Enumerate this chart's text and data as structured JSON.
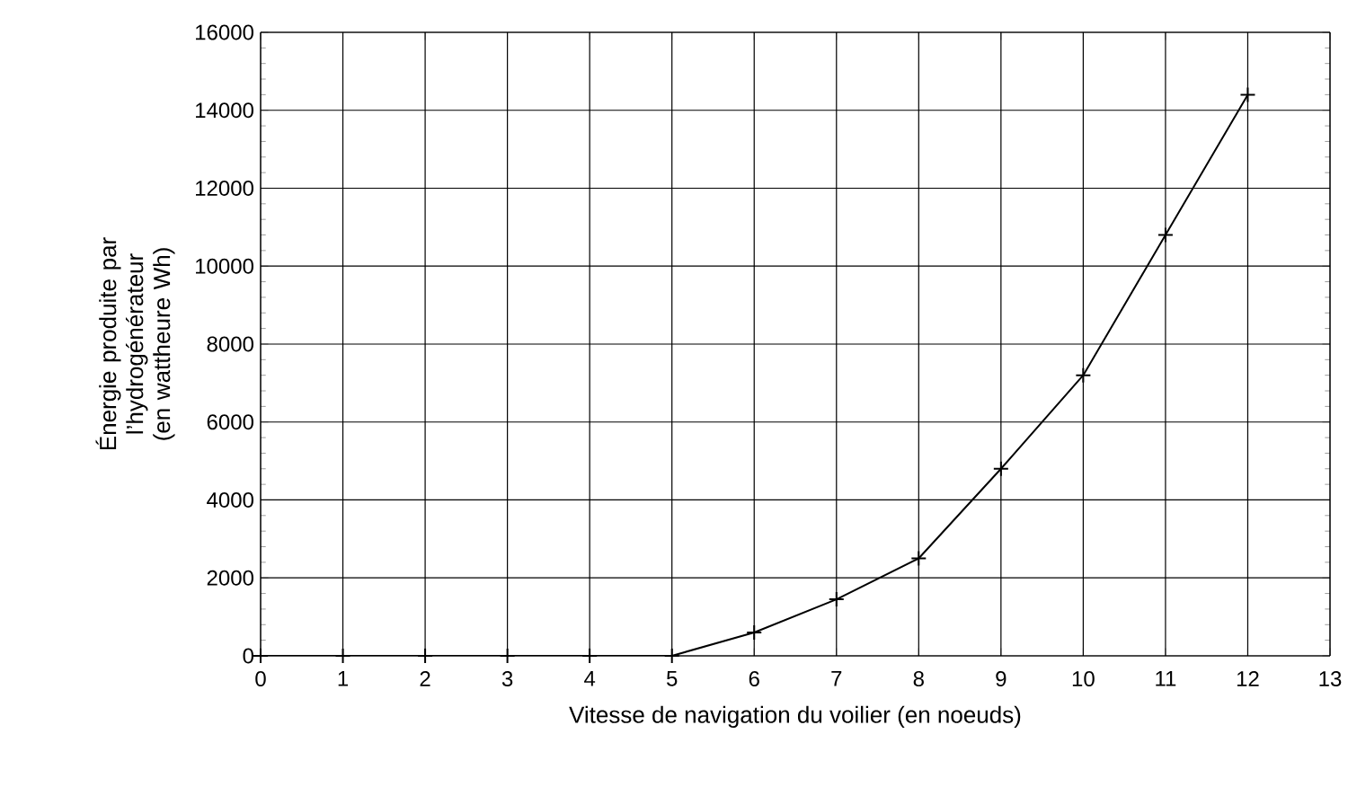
{
  "chart_data": {
    "type": "line",
    "xlabel": "Vitesse de navigation du voilier (en noeuds)",
    "ylabel": "Énergie produite par l’hydrogénérateur (en wattheure Wh)",
    "x": [
      0,
      1,
      2,
      3,
      4,
      5,
      6,
      7,
      8,
      9,
      10,
      11,
      12
    ],
    "series": [
      {
        "color": "#000000",
        "values": [
          0,
          0,
          0,
          0,
          0,
          0,
          600,
          1450,
          2500,
          4800,
          7200,
          10800,
          14400
        ]
      }
    ],
    "xlim": [
      0,
      13
    ],
    "xticks": [
      0,
      1,
      2,
      3,
      4,
      5,
      6,
      7,
      8,
      9,
      10,
      11,
      12,
      13
    ],
    "ylim": [
      0,
      16000
    ],
    "yticks": [
      0,
      2000,
      4000,
      6000,
      8000,
      10000,
      12000,
      14000,
      16000
    ],
    "grid": true,
    "marker": "cross",
    "line_style": "solid"
  }
}
